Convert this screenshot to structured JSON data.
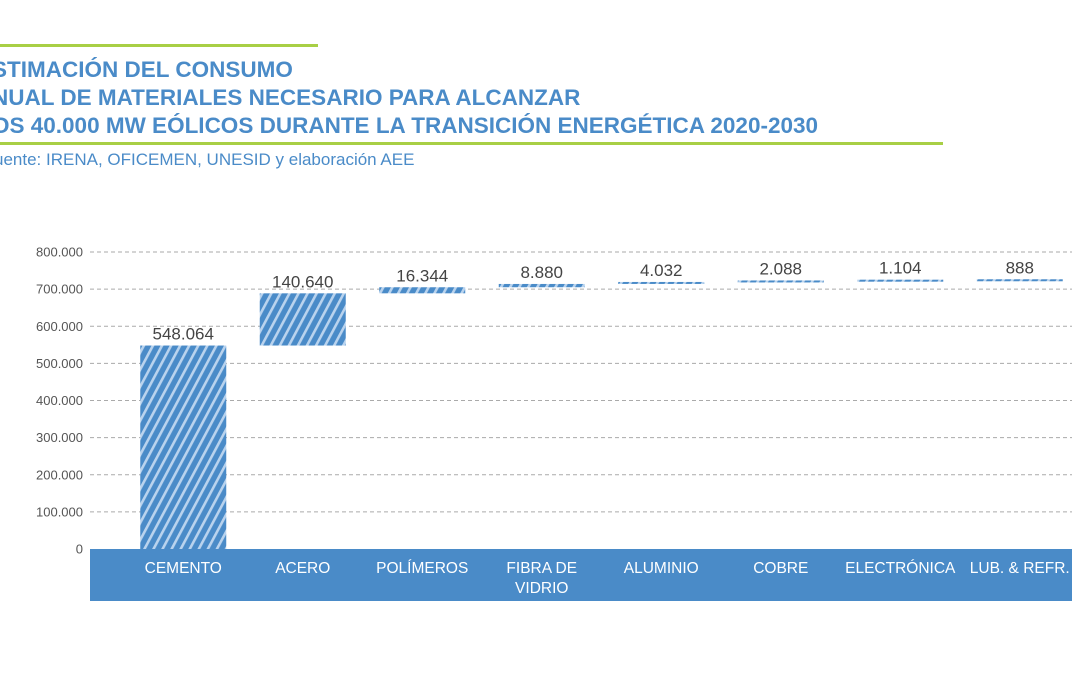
{
  "title_lines": [
    "STIMACIÓN DEL CONSUMO",
    "NUAL DE MATERIALES NECESARIO PARA ALCANZAR",
    "OS 40.000 MW EÓLICOS DURANTE LA TRANSICIÓN ENERGÉTICA 2020-2030"
  ],
  "source": "uente: IRENA, OFICEMEN, UNESID y elaboración AEE",
  "colors": {
    "accent_rule": "#a8cf45",
    "title": "#4a8bc8",
    "bar": "#4a8bc8",
    "category_band": "#4a8bc8"
  },
  "chart_data": {
    "type": "bar",
    "subtype": "waterfall",
    "categories": [
      [
        "CEMENTO"
      ],
      [
        "ACERO"
      ],
      [
        "POLÍMEROS"
      ],
      [
        "FIBRA DE",
        "VIDRIO"
      ],
      [
        "ALUMINIO"
      ],
      [
        "COBRE"
      ],
      [
        "ELECTRÓNICA"
      ],
      [
        "LUB. & REFR."
      ]
    ],
    "values": [
      548064,
      140640,
      16344,
      8880,
      4032,
      2088,
      1104,
      888
    ],
    "data_labels": [
      "548.064",
      "140.640",
      "16.344",
      "8.880",
      "4.032",
      "2.088",
      "1.104",
      "888"
    ],
    "ylim": [
      0,
      800000
    ],
    "yticks": [
      0,
      100000,
      200000,
      300000,
      400000,
      500000,
      600000,
      700000,
      800000
    ],
    "ytick_labels": [
      "0",
      "100.000",
      "200.000",
      "300.000",
      "400.000",
      "500.000",
      "600.000",
      "700.000",
      "800.000"
    ],
    "grid": true,
    "bar_fill": "diagonal-hatch"
  }
}
